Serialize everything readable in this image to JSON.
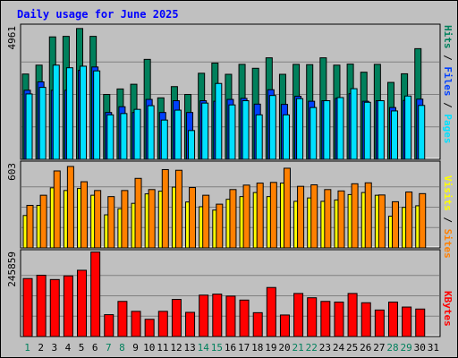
{
  "chart_data": {
    "type": "bar",
    "title": "Daily usage for June 2025",
    "colors": {
      "background": "#c0c0c0",
      "title": "#0000ff",
      "hits": "#00805c",
      "files": "#0040ff",
      "pages": "#00e0ff",
      "visits": "#ffff00",
      "sites": "#ff8000",
      "kbytes": "#ff0000",
      "weekend_label": "#00805c",
      "weekday_label": "#000000"
    },
    "days": [
      "1",
      "2",
      "3",
      "4",
      "5",
      "6",
      "7",
      "8",
      "9",
      "10",
      "11",
      "12",
      "13",
      "14",
      "15",
      "16",
      "17",
      "18",
      "19",
      "20",
      "21",
      "22",
      "23",
      "24",
      "25",
      "26",
      "27",
      "28",
      "29",
      "30",
      "31"
    ],
    "weekend_days": [
      "1",
      "7",
      "8",
      "14",
      "15",
      "21",
      "22",
      "28",
      "29"
    ],
    "panels": [
      {
        "id": "usage",
        "max_label": "4961",
        "max_value": 4961,
        "legend": [
          "Pages",
          "Files",
          "Hits"
        ],
        "series": [
          {
            "name": "Hits",
            "values": [
              3260,
              3600,
              4680,
              4700,
              5000,
              4700,
              2480,
              2690,
              2870,
              3820,
              2350,
              2780,
              2480,
              3290,
              3680,
              3250,
              3630,
              3480,
              3880,
              3250,
              3630,
              3620,
              3880,
              3600,
              3640,
              3330,
              3630,
              2940,
              3270,
              4230,
              0
            ]
          },
          {
            "name": "Files",
            "values": [
              2640,
              2960,
              2640,
              2640,
              3400,
              3530,
              1790,
              2010,
              1790,
              2290,
              1790,
              2240,
              1790,
              2240,
              2220,
              2290,
              2330,
              2110,
              2660,
              2100,
              2410,
              2220,
              2240,
              2330,
              2510,
              2220,
              2240,
              1980,
              2250,
              2300,
              0
            ]
          },
          {
            "name": "Pages",
            "values": [
              2500,
              2750,
              3600,
              3500,
              3560,
              3380,
              1700,
              1750,
              1910,
              2050,
              1500,
              1880,
              1100,
              2150,
              2900,
              2080,
              2240,
              1700,
              2440,
              1700,
              2320,
              1980,
              2240,
              2360,
              2700,
              2180,
              2240,
              1850,
              2420,
              2060,
              0
            ]
          }
        ]
      },
      {
        "id": "visits-sites",
        "max_label": "603",
        "max_value": 603,
        "legend": [
          "Sites",
          "Visits"
        ],
        "series": [
          {
            "name": "Sites",
            "values": [
              315,
              390,
              570,
              603,
              490,
              425,
              380,
              425,
              515,
              432,
              580,
              575,
              447,
              390,
              324,
              432,
              465,
              480,
              485,
              590,
              456,
              467,
              432,
              422,
              475,
              482,
              392,
              342,
              414,
              402,
              0
            ]
          },
          {
            "name": "Visits",
            "values": [
              240,
              315,
              445,
              425,
              440,
              390,
              245,
              290,
              330,
              400,
              420,
              450,
              340,
              305,
              280,
              360,
              380,
              410,
              380,
              480,
              345,
              370,
              345,
              355,
              395,
              410,
              390,
              235,
              300,
              312,
              0
            ]
          }
        ]
      },
      {
        "id": "kbytes",
        "max_label": "245859",
        "max_value": 245859,
        "legend": [
          "KBytes"
        ],
        "series": [
          {
            "name": "KBytes",
            "values": [
              175000,
              185000,
              172000,
              183000,
              200000,
              255000,
              66000,
              106000,
              76000,
              52000,
              76000,
              112000,
              73000,
              125000,
              128000,
              122000,
              110000,
              72000,
              148000,
              65000,
              130000,
              117000,
              106000,
              104000,
              130000,
              102000,
              80000,
              104000,
              89000,
              83000,
              0
            ]
          }
        ]
      }
    ]
  }
}
